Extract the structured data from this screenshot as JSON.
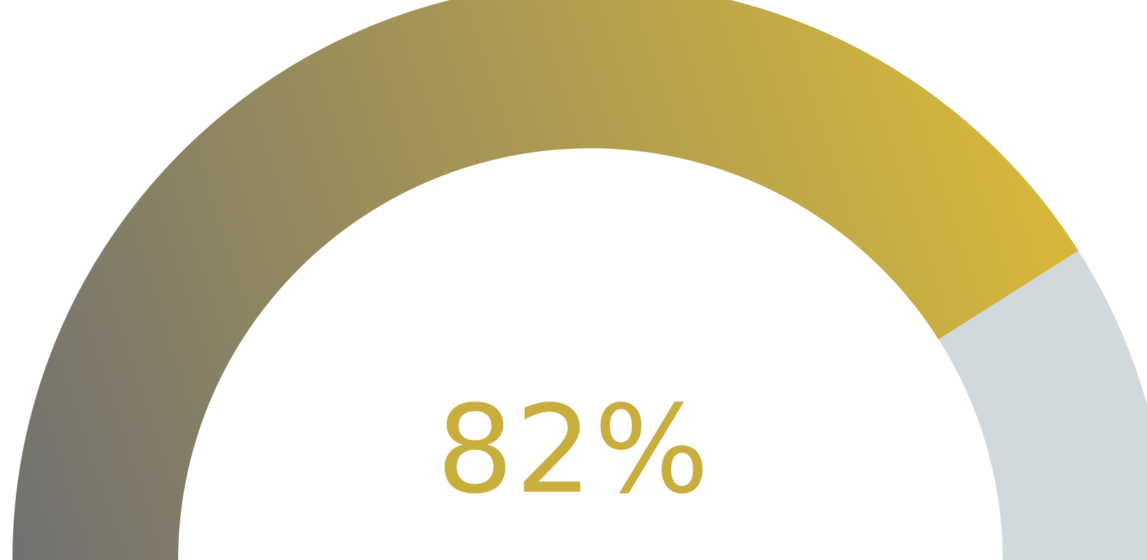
{
  "gauge": {
    "value_label": "82%",
    "fraction": 0.82,
    "colors": {
      "fill_start": "#727170",
      "fill_end": "#d6b73c",
      "track": "#d2d9dd",
      "value_text": "#c9ad3d",
      "background": "#ffffff"
    }
  }
}
